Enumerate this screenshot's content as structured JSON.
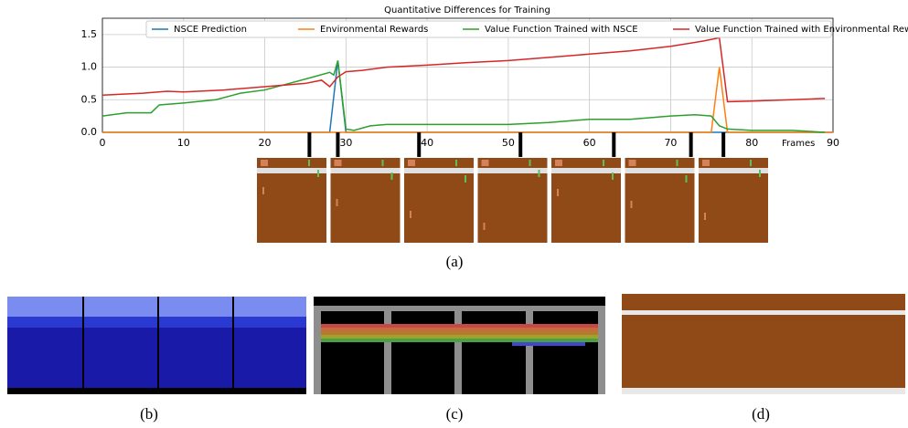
{
  "chart_data": {
    "type": "line",
    "title": "Quantitative Differences for Training",
    "x_label": "Frames",
    "xlim": [
      0,
      90
    ],
    "ylim": [
      0,
      1.75
    ],
    "xticks": [
      0,
      10,
      20,
      30,
      40,
      50,
      60,
      70,
      80,
      90
    ],
    "yticks": [
      {
        "value": 0,
        "label": "0.0"
      },
      {
        "value": 0.5,
        "label": "0.5"
      },
      {
        "value": 1,
        "label": "1.0"
      },
      {
        "value": 1.5,
        "label": "1.5"
      }
    ],
    "grid": true,
    "legend": "top-right",
    "frame_markers": [
      25.5,
      29,
      39,
      51.5,
      63,
      72.5,
      76.5
    ],
    "series": [
      {
        "name": "NSCE Prediction",
        "color": "#1f77b4",
        "x": [
          0,
          28,
          29,
          30,
          90
        ],
        "values": [
          0,
          0,
          1.1,
          0,
          0
        ]
      },
      {
        "name": "Environmental Rewards",
        "color": "#ff7f0e",
        "x": [
          0,
          75,
          76,
          77,
          90
        ],
        "values": [
          0,
          0,
          1.0,
          0,
          0
        ]
      },
      {
        "name": "Value Function Trained with NSCE",
        "color": "#2ca02c",
        "x": [
          0,
          3,
          6,
          7,
          10,
          14,
          17,
          20,
          23,
          26,
          28,
          28.5,
          29,
          30,
          31,
          33,
          35,
          40,
          50,
          55,
          60,
          65,
          70,
          73,
          75,
          76,
          77,
          80,
          85,
          89
        ],
        "values": [
          0.25,
          0.3,
          0.3,
          0.42,
          0.45,
          0.5,
          0.6,
          0.65,
          0.75,
          0.85,
          0.92,
          0.88,
          1.1,
          0.05,
          0.03,
          0.1,
          0.12,
          0.12,
          0.12,
          0.15,
          0.2,
          0.2,
          0.25,
          0.27,
          0.25,
          0.1,
          0.05,
          0.03,
          0.03,
          0.0
        ]
      },
      {
        "name": "Value Function Trained with Environmental Rewards",
        "color": "#d62728",
        "x": [
          0,
          5,
          8,
          10,
          15,
          20,
          25,
          27,
          28,
          29,
          30,
          32,
          35,
          40,
          45,
          50,
          55,
          60,
          65,
          70,
          74,
          76,
          77,
          80,
          85,
          89
        ],
        "values": [
          0.57,
          0.6,
          0.63,
          0.62,
          0.65,
          0.7,
          0.75,
          0.8,
          0.7,
          0.85,
          0.93,
          0.95,
          1.0,
          1.03,
          1.07,
          1.1,
          1.15,
          1.2,
          1.25,
          1.32,
          1.4,
          1.45,
          0.47,
          0.48,
          0.5,
          0.52
        ]
      }
    ]
  },
  "captions": [
    "(a)",
    "(b)",
    "(c)",
    "(d)"
  ]
}
